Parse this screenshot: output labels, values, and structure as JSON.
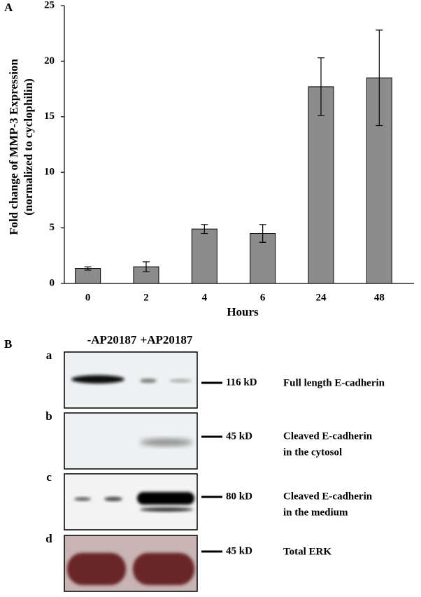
{
  "chart_data": {
    "type": "bar",
    "panel_label": "A",
    "ylabel": [
      "Fold change of MMP-3 Expression",
      "(normalized to cyclophilin)"
    ],
    "xlabel": "Hours",
    "categories": [
      "0",
      "2",
      "4",
      "6",
      "24",
      "48"
    ],
    "values": [
      1.35,
      1.5,
      4.9,
      4.5,
      17.7,
      18.5
    ],
    "errors": [
      0.15,
      0.45,
      0.4,
      0.8,
      2.6,
      4.3
    ],
    "color": "#8c8c8c",
    "ylim": [
      0,
      25
    ],
    "yticks": [
      0,
      5,
      10,
      15,
      20,
      25
    ],
    "grid": false
  },
  "panel_b": {
    "label": "B",
    "conditions": [
      "-AP20187",
      "+AP20187"
    ],
    "blots": [
      {
        "letter": "a",
        "size": "116 kD",
        "description": [
          "Full length E-cadherin"
        ]
      },
      {
        "letter": "b",
        "size": "45 kD",
        "description": [
          "Cleaved E-cadherin",
          "in the cytosol"
        ]
      },
      {
        "letter": "c",
        "size": "80 kD",
        "description": [
          "Cleaved E-cadherin",
          "in the medium"
        ]
      },
      {
        "letter": "d",
        "size": "45 kD",
        "description": [
          "Total ERK"
        ]
      }
    ]
  }
}
